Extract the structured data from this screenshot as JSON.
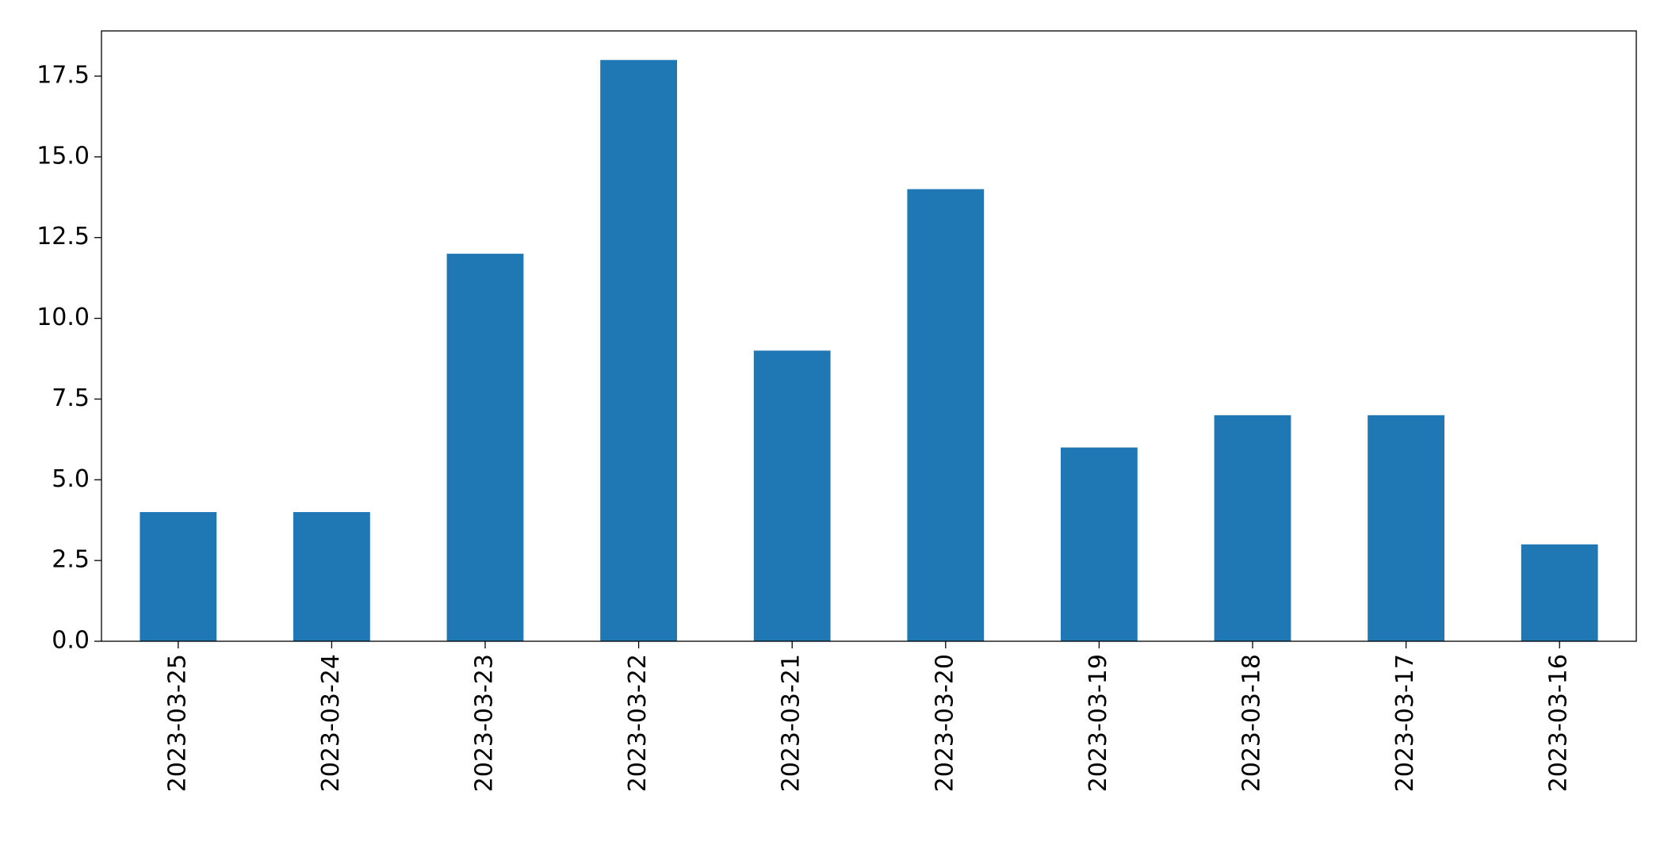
{
  "chart_data": {
    "type": "bar",
    "categories": [
      "2023-03-25",
      "2023-03-24",
      "2023-03-23",
      "2023-03-22",
      "2023-03-21",
      "2023-03-20",
      "2023-03-19",
      "2023-03-18",
      "2023-03-17",
      "2023-03-16"
    ],
    "values": [
      4,
      4,
      12,
      18,
      9,
      14,
      6,
      7,
      7,
      3
    ],
    "color": "#1f77b4",
    "ylim": [
      0,
      18.9
    ],
    "yticks": [
      {
        "value": 0,
        "label": "0.0"
      },
      2.5,
      {
        "value": 5,
        "label": "5.0"
      },
      7.5,
      {
        "value": 10,
        "label": "10.0"
      },
      12.5,
      {
        "value": 15,
        "label": "15.0"
      },
      17.5
    ],
    "grid": false
  }
}
